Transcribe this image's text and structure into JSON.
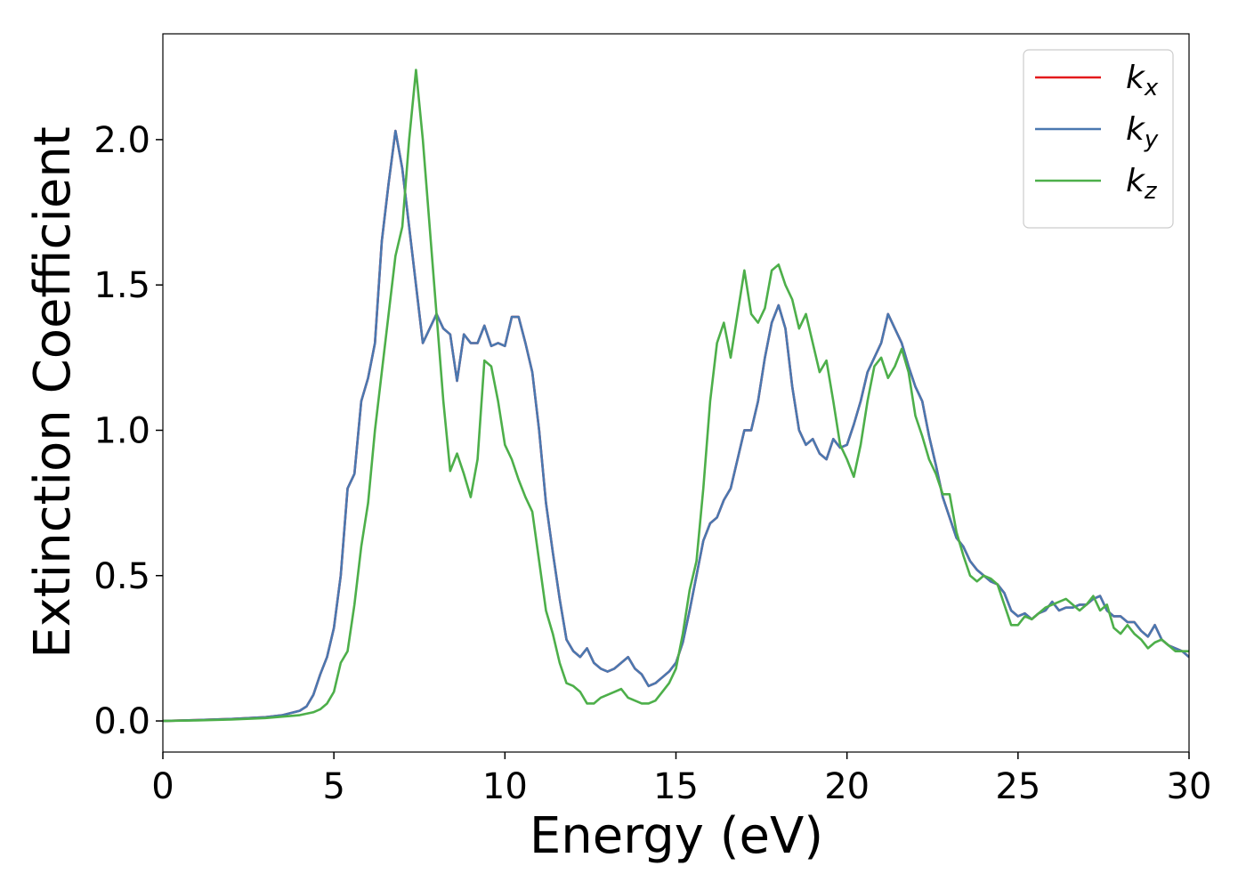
{
  "chart_data": {
    "type": "line",
    "xlabel": "Energy (eV)",
    "ylabel": "Extinction Coefficient",
    "x": [
      0,
      1,
      2,
      3,
      3.5,
      4.0,
      4.2,
      4.4,
      4.6,
      4.8,
      5.0,
      5.2,
      5.4,
      5.6,
      5.8,
      6.0,
      6.2,
      6.4,
      6.6,
      6.8,
      7.0,
      7.2,
      7.4,
      7.6,
      7.8,
      8.0,
      8.2,
      8.4,
      8.6,
      8.8,
      9.0,
      9.2,
      9.4,
      9.6,
      9.8,
      10.0,
      10.2,
      10.4,
      10.6,
      10.8,
      11.0,
      11.2,
      11.4,
      11.6,
      11.8,
      12.0,
      12.2,
      12.4,
      12.6,
      12.8,
      13.0,
      13.2,
      13.4,
      13.6,
      13.8,
      14.0,
      14.2,
      14.4,
      14.6,
      14.8,
      15.0,
      15.2,
      15.4,
      15.6,
      15.8,
      16.0,
      16.2,
      16.4,
      16.6,
      16.8,
      17.0,
      17.2,
      17.4,
      17.6,
      17.8,
      18.0,
      18.2,
      18.4,
      18.6,
      18.8,
      19.0,
      19.2,
      19.4,
      19.6,
      19.8,
      20.0,
      20.2,
      20.4,
      20.6,
      20.8,
      21.0,
      21.2,
      21.4,
      21.6,
      21.8,
      22.0,
      22.2,
      22.4,
      22.6,
      22.8,
      23.0,
      23.2,
      23.4,
      23.6,
      23.8,
      24.0,
      24.2,
      24.4,
      24.6,
      24.8,
      25.0,
      25.2,
      25.4,
      25.6,
      25.8,
      26.0,
      26.2,
      26.4,
      26.6,
      26.8,
      27.0,
      27.2,
      27.4,
      27.6,
      27.8,
      28.0,
      28.2,
      28.4,
      28.6,
      28.8,
      29.0,
      29.2,
      29.4,
      29.6,
      29.8,
      30.0
    ],
    "series": [
      {
        "name": "kx",
        "color": "#e41a1c",
        "values": [
          0,
          0.003,
          0.007,
          0.013,
          0.02,
          0.035,
          0.05,
          0.09,
          0.16,
          0.22,
          0.32,
          0.5,
          0.8,
          0.85,
          1.1,
          1.18,
          1.3,
          1.65,
          1.85,
          2.03,
          1.9,
          1.7,
          1.5,
          1.3,
          1.35,
          1.4,
          1.35,
          1.33,
          1.17,
          1.33,
          1.3,
          1.3,
          1.36,
          1.29,
          1.3,
          1.29,
          1.39,
          1.39,
          1.3,
          1.2,
          1.0,
          0.75,
          0.58,
          0.42,
          0.28,
          0.24,
          0.22,
          0.25,
          0.2,
          0.18,
          0.17,
          0.18,
          0.2,
          0.22,
          0.18,
          0.16,
          0.12,
          0.13,
          0.15,
          0.17,
          0.2,
          0.27,
          0.38,
          0.5,
          0.62,
          0.68,
          0.7,
          0.76,
          0.8,
          0.9,
          1.0,
          1.0,
          1.1,
          1.25,
          1.37,
          1.43,
          1.35,
          1.15,
          1.0,
          0.95,
          0.97,
          0.92,
          0.9,
          0.97,
          0.94,
          0.95,
          1.02,
          1.1,
          1.2,
          1.25,
          1.3,
          1.4,
          1.35,
          1.3,
          1.22,
          1.15,
          1.1,
          0.98,
          0.88,
          0.77,
          0.7,
          0.63,
          0.6,
          0.55,
          0.52,
          0.5,
          0.48,
          0.47,
          0.44,
          0.38,
          0.36,
          0.37,
          0.35,
          0.37,
          0.38,
          0.41,
          0.38,
          0.39,
          0.39,
          0.4,
          0.4,
          0.42,
          0.43,
          0.38,
          0.36,
          0.36,
          0.34,
          0.34,
          0.31,
          0.29,
          0.33,
          0.28,
          0.26,
          0.25,
          0.24,
          0.22
        ]
      },
      {
        "name": "ky",
        "color": "#4a78b0",
        "values": [
          0,
          0.003,
          0.007,
          0.013,
          0.02,
          0.035,
          0.05,
          0.09,
          0.16,
          0.22,
          0.32,
          0.5,
          0.8,
          0.85,
          1.1,
          1.18,
          1.3,
          1.65,
          1.85,
          2.03,
          1.9,
          1.7,
          1.5,
          1.3,
          1.35,
          1.4,
          1.35,
          1.33,
          1.17,
          1.33,
          1.3,
          1.3,
          1.36,
          1.29,
          1.3,
          1.29,
          1.39,
          1.39,
          1.3,
          1.2,
          1.0,
          0.75,
          0.58,
          0.42,
          0.28,
          0.24,
          0.22,
          0.25,
          0.2,
          0.18,
          0.17,
          0.18,
          0.2,
          0.22,
          0.18,
          0.16,
          0.12,
          0.13,
          0.15,
          0.17,
          0.2,
          0.27,
          0.38,
          0.5,
          0.62,
          0.68,
          0.7,
          0.76,
          0.8,
          0.9,
          1.0,
          1.0,
          1.1,
          1.25,
          1.37,
          1.43,
          1.35,
          1.15,
          1.0,
          0.95,
          0.97,
          0.92,
          0.9,
          0.97,
          0.94,
          0.95,
          1.02,
          1.1,
          1.2,
          1.25,
          1.3,
          1.4,
          1.35,
          1.3,
          1.22,
          1.15,
          1.1,
          0.98,
          0.88,
          0.77,
          0.7,
          0.63,
          0.6,
          0.55,
          0.52,
          0.5,
          0.48,
          0.47,
          0.44,
          0.38,
          0.36,
          0.37,
          0.35,
          0.37,
          0.38,
          0.41,
          0.38,
          0.39,
          0.39,
          0.4,
          0.4,
          0.42,
          0.43,
          0.38,
          0.36,
          0.36,
          0.34,
          0.34,
          0.31,
          0.29,
          0.33,
          0.28,
          0.26,
          0.25,
          0.24,
          0.22
        ]
      },
      {
        "name": "kz",
        "color": "#4daf4a",
        "values": [
          0,
          0.002,
          0.005,
          0.01,
          0.015,
          0.02,
          0.025,
          0.03,
          0.04,
          0.06,
          0.1,
          0.2,
          0.24,
          0.4,
          0.6,
          0.75,
          1.0,
          1.2,
          1.4,
          1.6,
          1.7,
          2.0,
          2.24,
          2.0,
          1.7,
          1.4,
          1.1,
          0.86,
          0.92,
          0.85,
          0.77,
          0.9,
          1.24,
          1.22,
          1.1,
          0.95,
          0.9,
          0.83,
          0.77,
          0.72,
          0.55,
          0.38,
          0.3,
          0.2,
          0.13,
          0.12,
          0.1,
          0.06,
          0.06,
          0.08,
          0.09,
          0.1,
          0.11,
          0.08,
          0.07,
          0.06,
          0.06,
          0.07,
          0.1,
          0.13,
          0.18,
          0.3,
          0.45,
          0.55,
          0.8,
          1.1,
          1.3,
          1.37,
          1.25,
          1.4,
          1.55,
          1.4,
          1.37,
          1.42,
          1.55,
          1.57,
          1.5,
          1.45,
          1.35,
          1.4,
          1.3,
          1.2,
          1.24,
          1.1,
          0.95,
          0.9,
          0.84,
          0.95,
          1.1,
          1.22,
          1.25,
          1.18,
          1.22,
          1.28,
          1.2,
          1.05,
          0.98,
          0.9,
          0.85,
          0.78,
          0.78,
          0.65,
          0.57,
          0.5,
          0.48,
          0.5,
          0.49,
          0.47,
          0.4,
          0.33,
          0.33,
          0.36,
          0.35,
          0.37,
          0.39,
          0.4,
          0.41,
          0.42,
          0.4,
          0.38,
          0.4,
          0.43,
          0.38,
          0.4,
          0.32,
          0.3,
          0.33,
          0.3,
          0.28,
          0.25,
          0.27,
          0.28,
          0.26,
          0.24,
          0.24,
          0.24
        ]
      }
    ],
    "xlim": [
      0,
      30
    ],
    "xticks": [
      0,
      5,
      10,
      15,
      20,
      25,
      30
    ],
    "ylim": [
      -0.107,
      2.364
    ],
    "yticks": [
      {
        "value": 0,
        "label": "0.0"
      },
      0.5,
      {
        "value": 1,
        "label": "1.0"
      },
      1.5,
      {
        "value": 2,
        "label": "2.0"
      }
    ],
    "grid": false,
    "legend": "upper right"
  }
}
